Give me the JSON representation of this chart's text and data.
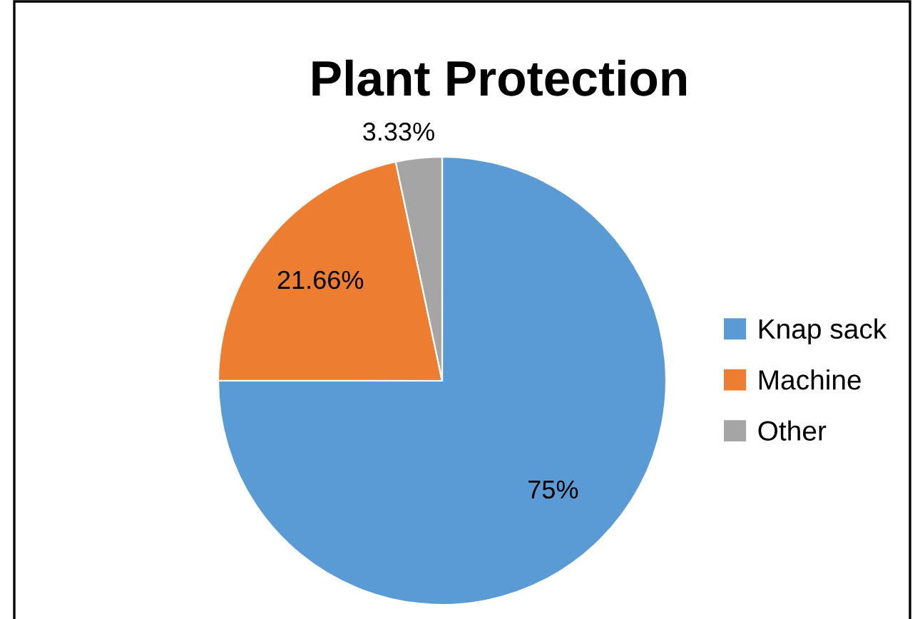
{
  "chart_data": {
    "type": "pie",
    "title": "Plant Protection",
    "categories": [
      "Knap sack",
      "Machine",
      "Other"
    ],
    "values": [
      75,
      21.66,
      3.33
    ],
    "colors": [
      "#5b9bd5",
      "#ed7d31",
      "#a5a5a5"
    ],
    "value_labels": [
      "75%",
      "21.66%",
      "3.33%"
    ],
    "legend": "right"
  }
}
